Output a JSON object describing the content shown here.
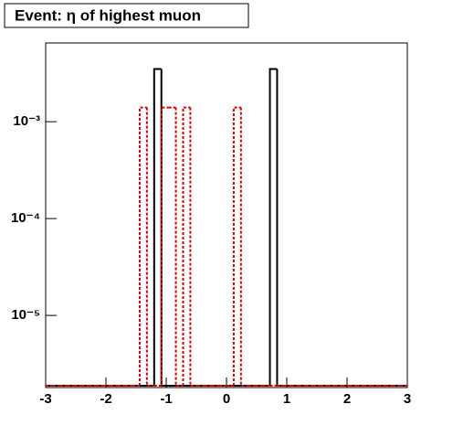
{
  "chart_data": {
    "type": "histogram",
    "title": "Event: η of highest muon",
    "log_y": true,
    "grid": false,
    "bins": [
      -3,
      -2.88,
      -2.76,
      -2.64,
      -2.52,
      -2.4,
      -2.28,
      -2.16,
      -2.04,
      -1.92,
      -1.8,
      -1.68,
      -1.56,
      -1.44,
      -1.32,
      -1.2,
      -1.08,
      -0.96,
      -0.84,
      -0.72,
      -0.6,
      -0.48,
      -0.36,
      -0.24,
      -0.12,
      0,
      0.12,
      0.24,
      0.36,
      0.48,
      0.6,
      0.72,
      0.84,
      0.96,
      1.08,
      1.2,
      1.32,
      1.44,
      1.56,
      1.68,
      1.8,
      1.92,
      2.04,
      2.16,
      2.28,
      2.4,
      2.52,
      2.64,
      2.76,
      2.88,
      3
    ],
    "series": [
      {
        "color": "#000000",
        "style": "solid",
        "values": [
          0,
          0,
          0,
          0,
          0,
          0,
          0,
          0,
          0,
          0,
          0,
          0,
          0,
          0,
          0,
          0.0035,
          0,
          0,
          0,
          0,
          0,
          0,
          0,
          0,
          0,
          0,
          0,
          0,
          0,
          0,
          0,
          0.0035,
          0,
          0,
          0,
          0,
          0,
          0,
          0,
          0,
          0,
          0,
          0,
          0,
          0,
          0,
          0,
          0,
          0,
          0
        ]
      },
      {
        "color": "#dd0000",
        "style": "dotted",
        "values": [
          0,
          0,
          0,
          0,
          0,
          0,
          0,
          0,
          0,
          0,
          0,
          0,
          0,
          0.0014,
          0,
          0,
          0.0014,
          0.0014,
          0,
          0.0014,
          0,
          0,
          0,
          0,
          0,
          0,
          0.0014,
          0,
          0,
          0,
          0,
          0,
          0,
          0,
          0,
          0,
          0,
          0,
          0,
          0,
          0,
          0,
          0,
          0,
          0,
          0,
          0,
          0,
          0,
          0
        ]
      }
    ],
    "xlim": [
      -3,
      3
    ],
    "xticks": [
      -3,
      -2,
      -1,
      0,
      1,
      2,
      3
    ],
    "ylim": [
      1.8e-06,
      0.0065
    ],
    "yticks": [
      {
        "value": 1e-05,
        "label": "10⁻⁵"
      },
      {
        "value": 0.0001,
        "label": "10⁻⁴"
      },
      {
        "value": 0.001,
        "label": "10⁻³"
      }
    ]
  }
}
